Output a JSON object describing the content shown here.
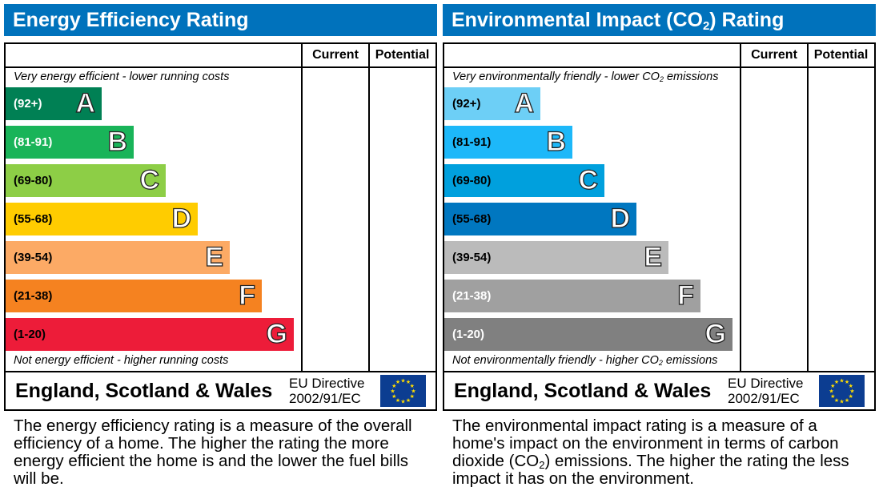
{
  "panels": [
    {
      "title_pre": "Energy Efficiency Rating",
      "title_sub": "",
      "title_post": "",
      "col_current": "Current",
      "col_potential": "Potential",
      "top_note_pre": "Very energy efficient - lower running costs",
      "top_note_sub": "",
      "top_note_post": "",
      "bottom_note_pre": "Not energy efficient - higher running costs",
      "bottom_note_sub": "",
      "bottom_note_post": "",
      "bands": [
        {
          "range": "(92+)",
          "letter": "A",
          "color": "#008054",
          "text_color": "#ffffff"
        },
        {
          "range": "(81-91)",
          "letter": "B",
          "color": "#19b459",
          "text_color": "#ffffff"
        },
        {
          "range": "(69-80)",
          "letter": "C",
          "color": "#8dce46",
          "text_color": "#000000"
        },
        {
          "range": "(55-68)",
          "letter": "D",
          "color": "#ffcc00",
          "text_color": "#000000"
        },
        {
          "range": "(39-54)",
          "letter": "E",
          "color": "#fcaa65",
          "text_color": "#000000"
        },
        {
          "range": "(21-38)",
          "letter": "F",
          "color": "#f58220",
          "text_color": "#000000"
        },
        {
          "range": "(1-20)",
          "letter": "G",
          "color": "#ed1c39",
          "text_color": "#000000"
        }
      ],
      "country": "England, Scotland & Wales",
      "directive_line1": "EU Directive",
      "directive_line2": "2002/91/EC",
      "description_pre": "The energy efficiency rating is a measure of the overall efficiency of a home. The higher the rating the more energy efficient the home is and the lower the fuel bills will be.",
      "description_sub": "",
      "description_post": ""
    },
    {
      "title_pre": "Environmental Impact (CO",
      "title_sub": "2",
      "title_post": ") Rating",
      "col_current": "Current",
      "col_potential": "Potential",
      "top_note_pre": "Very environmentally friendly - lower CO",
      "top_note_sub": "2",
      "top_note_post": " emissions",
      "bottom_note_pre": "Not environmentally friendly - higher CO",
      "bottom_note_sub": "2",
      "bottom_note_post": " emissions",
      "bands": [
        {
          "range": "(92+)",
          "letter": "A",
          "color": "#6dcff6",
          "text_color": "#000000"
        },
        {
          "range": "(81-91)",
          "letter": "B",
          "color": "#1db8f9",
          "text_color": "#000000"
        },
        {
          "range": "(69-80)",
          "letter": "C",
          "color": "#00a0dd",
          "text_color": "#000000"
        },
        {
          "range": "(55-68)",
          "letter": "D",
          "color": "#0077c0",
          "text_color": "#000000"
        },
        {
          "range": "(39-54)",
          "letter": "E",
          "color": "#bbbbbb",
          "text_color": "#000000"
        },
        {
          "range": "(21-38)",
          "letter": "F",
          "color": "#a0a0a0",
          "text_color": "#ffffff"
        },
        {
          "range": "(1-20)",
          "letter": "G",
          "color": "#808080",
          "text_color": "#ffffff"
        }
      ],
      "country": "England, Scotland & Wales",
      "directive_line1": "EU Directive",
      "directive_line2": "2002/91/EC",
      "description_pre": "The environmental impact rating is a measure of a home's impact on the environment in terms of carbon dioxide (CO",
      "description_sub": "2",
      "description_post": ") emissions. The higher the rating the less impact it has on the environment."
    }
  ]
}
